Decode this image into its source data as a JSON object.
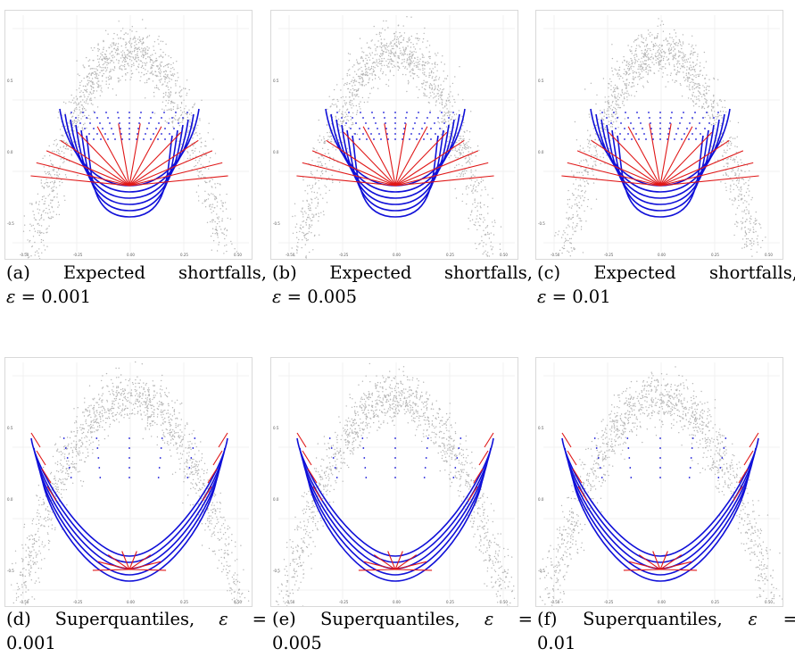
{
  "figure": {
    "panels": [
      {
        "id": "a",
        "label": "(a)",
        "line1": [
          "Expected",
          "shortfalls,"
        ],
        "line2": "ε = 0.001",
        "kind": "es",
        "eps": 0.001
      },
      {
        "id": "b",
        "label": "(b)",
        "line1": [
          "Expected",
          "shortfalls,"
        ],
        "line2": "ε = 0.005",
        "kind": "es",
        "eps": 0.005
      },
      {
        "id": "c",
        "label": "(c)",
        "line1": [
          "Expected",
          "shortfalls,"
        ],
        "line2": "ε = 0.01",
        "kind": "es",
        "eps": 0.01
      },
      {
        "id": "d",
        "label": "(d)",
        "line1": [
          "Superquantiles,",
          "ε",
          "="
        ],
        "line2": "0.001",
        "kind": "sq",
        "eps": 0.001
      },
      {
        "id": "e",
        "label": "(e)",
        "line1": [
          "Superquantiles,",
          "ε",
          "="
        ],
        "line2": "0.005",
        "kind": "sq",
        "eps": 0.005
      },
      {
        "id": "f",
        "label": "(f)",
        "line1": [
          "Superquantiles,",
          "ε",
          "="
        ],
        "line2": "0.01",
        "kind": "sq",
        "eps": 0.01
      }
    ],
    "colors": {
      "points": "#b5b5b5",
      "contour": "#1010d8",
      "ray": "#e01818"
    }
  }
}
